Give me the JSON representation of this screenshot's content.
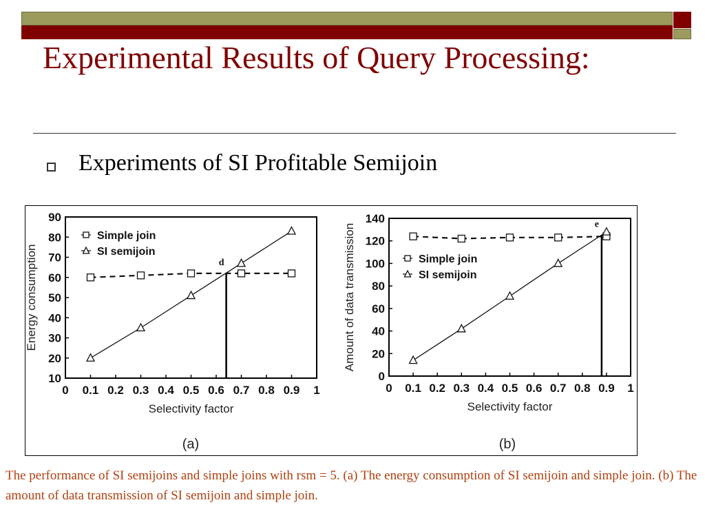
{
  "slide": {
    "title": "Experimental Results of Query Processing:",
    "bullet": "Experiments of SI Profitable Semijoin",
    "caption": "The performance of SI semijoins and simple joins with rsm = 5. (a) The energy consumption of SI semijoin and simple join. (b) The amount of data transmission of SI semijoin and simple join.",
    "colors": {
      "title": "#800000",
      "caption": "#b04010",
      "bar_olive": "#9b9b5c",
      "bar_maroon": "#800000"
    }
  },
  "chart_data": [
    {
      "type": "line",
      "panel_label": "(a)",
      "xlabel": "Selectivity factor",
      "ylabel": "Energy consumption",
      "xlim": [
        0,
        1
      ],
      "ylim": [
        10,
        90
      ],
      "xticks": [
        "0",
        "0.1",
        "0.2",
        "0.3",
        "0.4",
        "0.5",
        "0.6",
        "0.7",
        "0.8",
        "0.9",
        "1"
      ],
      "yticks": [
        "10",
        "20",
        "30",
        "40",
        "50",
        "60",
        "70",
        "80",
        "90"
      ],
      "legend_position": "top-left",
      "series": [
        {
          "name": "Simple join",
          "marker": "square",
          "style": "dashed",
          "x": [
            0.1,
            0.3,
            0.5,
            0.7,
            0.9
          ],
          "y": [
            60,
            61,
            62,
            62,
            62
          ]
        },
        {
          "name": "SI semijoin",
          "marker": "triangle",
          "style": "solid",
          "x": [
            0.1,
            0.3,
            0.5,
            0.7,
            0.9
          ],
          "y": [
            20,
            35,
            51,
            67,
            83
          ]
        }
      ],
      "annotation": {
        "label": "d",
        "x": 0.64,
        "y": 62
      }
    },
    {
      "type": "line",
      "panel_label": "(b)",
      "xlabel": "Selectivity factor",
      "ylabel": "Amount of data transmission",
      "xlim": [
        0,
        1
      ],
      "ylim": [
        0,
        140
      ],
      "xticks": [
        "0",
        "0.1",
        "0.2",
        "0.3",
        "0.4",
        "0.5",
        "0.6",
        "0.7",
        "0.8",
        "0.9",
        "1"
      ],
      "yticks": [
        "0",
        "20",
        "40",
        "60",
        "80",
        "100",
        "120",
        "140"
      ],
      "legend_position": "center-left",
      "series": [
        {
          "name": "Simple join",
          "marker": "square",
          "style": "dashed",
          "x": [
            0.1,
            0.3,
            0.5,
            0.7,
            0.9
          ],
          "y": [
            124,
            122,
            123,
            123,
            124
          ]
        },
        {
          "name": "SI semijoin",
          "marker": "triangle",
          "style": "solid",
          "x": [
            0.1,
            0.3,
            0.5,
            0.7,
            0.9
          ],
          "y": [
            14,
            42,
            71,
            100,
            128
          ]
        }
      ],
      "annotation": {
        "label": "e",
        "x": 0.88,
        "y": 125
      }
    }
  ]
}
